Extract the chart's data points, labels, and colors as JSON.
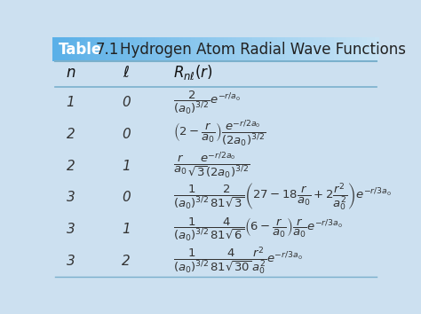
{
  "title_table": "Table",
  "title_num": "7.1",
  "title_text": "Hydrogen Atom Radial Wave Functions",
  "bg_color": "#cce0f0",
  "title_bar_color_left": "#5ab0e8",
  "title_bar_color_right": "#a8d4f0",
  "rows": [
    {
      "n": "1",
      "l": "0"
    },
    {
      "n": "2",
      "l": "0"
    },
    {
      "n": "2",
      "l": "1"
    },
    {
      "n": "3",
      "l": "0"
    },
    {
      "n": "3",
      "l": "1"
    },
    {
      "n": "3",
      "l": "2"
    }
  ],
  "formulas": [
    "$\\dfrac{2}{(a_0)^{3/2}}e^{-r/a_0}$",
    "$\\left(2 - \\dfrac{r}{a_0}\\right)\\dfrac{e^{-r/2a_0}}{(2a_0)^{3/2}}$",
    "$\\dfrac{r}{a_0}\\dfrac{e^{-r/2a_0}}{\\sqrt{3}(2a_0)^{3/2}}$",
    "$\\dfrac{1}{(a_0)^{3/2}}\\dfrac{2}{81\\sqrt{3}}\\left(27 - 18\\dfrac{r}{a_0} + 2\\dfrac{r^2}{a_0^{2}}\\right)e^{-r/3a_0}$",
    "$\\dfrac{1}{(a_0)^{3/2}}\\dfrac{4}{81\\sqrt{6}}\\left(6 - \\dfrac{r}{a_0}\\right)\\dfrac{r}{a_0}e^{-r/3a_0}$",
    "$\\dfrac{1}{(a_0)^{3/2}}\\dfrac{4}{81\\sqrt{30}}\\dfrac{r^2}{a_0^{2}}e^{-r/3a_0}$"
  ],
  "line_color": "#7ab0cc",
  "text_color": "#333333",
  "title_white": "#ffffff",
  "title_dark": "#222222",
  "font_size_title": 11,
  "font_size_header": 10,
  "font_size_row_nl": 10,
  "font_size_formula": 9.5
}
